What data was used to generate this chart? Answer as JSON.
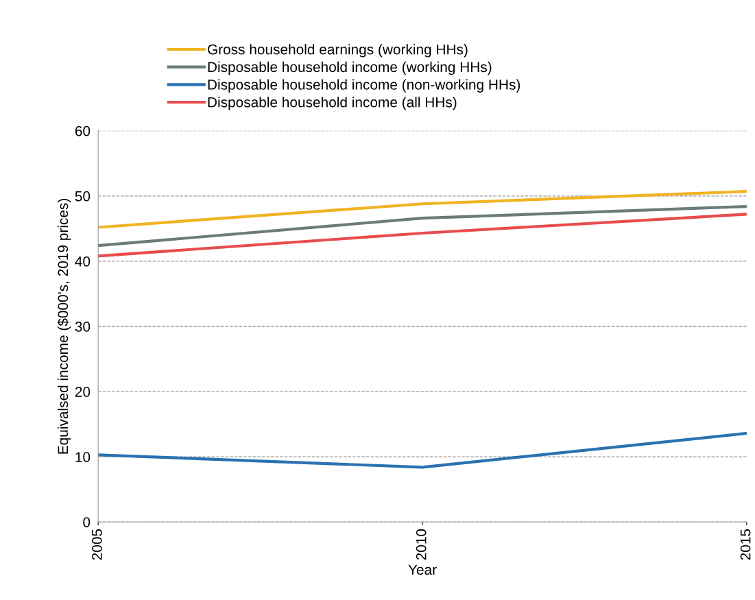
{
  "chart_data": {
    "type": "line",
    "xlabel": "Year",
    "ylabel": "Equivalsed income ($000's, 2019 prices)",
    "x": [
      2005,
      2010,
      2015
    ],
    "xlim": [
      2005,
      2015
    ],
    "xticks": [
      2005,
      2010,
      2015
    ],
    "ylim": [
      0,
      60
    ],
    "yticks": [
      0,
      10,
      20,
      30,
      40,
      50,
      60
    ],
    "grid": "y",
    "legend": "top",
    "marker": "none",
    "line_style": "solid",
    "series": [
      {
        "name": "Gross household earnings (working HHs)",
        "color": "#f0b323",
        "values": [
          45.2,
          48.8,
          50.7
        ]
      },
      {
        "name": "Disposable household income (working HHs)",
        "color": "#6b7b7b",
        "values": [
          42.4,
          46.6,
          48.4
        ]
      },
      {
        "name": "Disposable household income (non-working HHs)",
        "color": "#2a72b2",
        "values": [
          10.3,
          8.4,
          13.6
        ]
      },
      {
        "name": "Disposable household income (all HHs)",
        "color": "#e84c4c",
        "values": [
          40.8,
          44.3,
          47.2
        ]
      }
    ]
  }
}
